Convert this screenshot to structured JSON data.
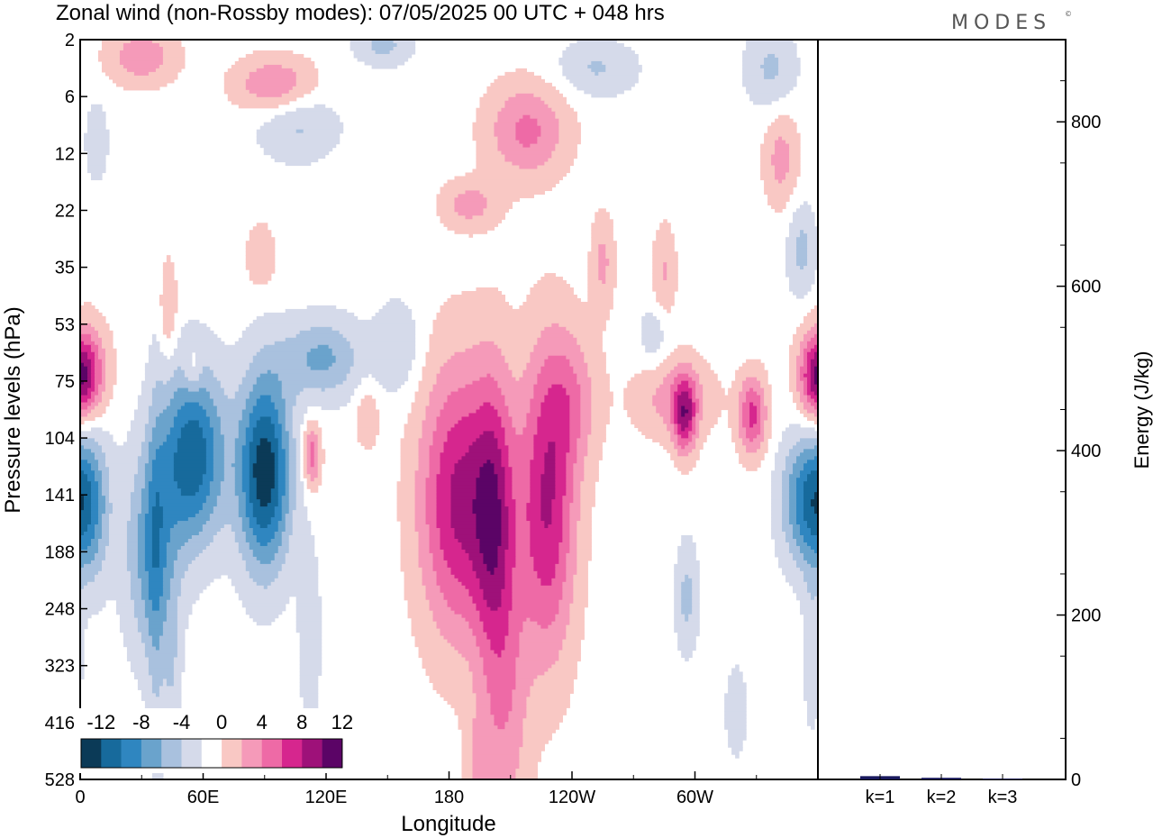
{
  "title": "Zonal wind (non-Rossby modes):  07/05/2025  00 UTC  + 048 hrs",
  "brand": "MODES",
  "brand_mark": "©",
  "colors": {
    "scale": [
      "#0b3a57",
      "#176a9c",
      "#2f86c0",
      "#6aa3cc",
      "#a9c1de",
      "#d5daea",
      "#ffffff",
      "#f9c8c4",
      "#f59ab9",
      "#ee6aa6",
      "#d6268e",
      "#9e1179",
      "#5b0466"
    ],
    "frame": "#000000",
    "energy_bar": "#1a1a5e"
  },
  "chart_data": [
    {
      "type": "heatmap",
      "title": "Zonal wind (non-Rossby modes):  07/05/2025  00 UTC  + 048 hrs",
      "xlabel": "Longitude",
      "ylabel": "Pressure levels (hPa)",
      "x_ticks": [
        "0",
        "60E",
        "120E",
        "180",
        "120W",
        "60W"
      ],
      "x_tick_degrees": [
        0,
        60,
        120,
        180,
        240,
        300
      ],
      "xlim": [
        0,
        360
      ],
      "y_ticks": [
        "2",
        "6",
        "12",
        "22",
        "35",
        "53",
        "75",
        "104",
        "141",
        "188",
        "248",
        "323",
        "416",
        "528"
      ],
      "y_scale": "model levels (categorical, top to bottom)",
      "colorbar_labels": [
        "-12",
        "-8",
        "-4",
        "0",
        "4",
        "8",
        "12"
      ],
      "grid": false,
      "features": [
        {
          "sign": "negative",
          "lon": 55,
          "level": 7.3,
          "lon_spread": 11,
          "level_spread": 1.1,
          "amp": -10.5
        },
        {
          "sign": "negative",
          "lon": 90,
          "level": 7.6,
          "lon_spread": 9,
          "level_spread": 1.2,
          "amp": -12.5
        },
        {
          "sign": "negative",
          "lon": 35,
          "level": 9.0,
          "lon_spread": 9,
          "level_spread": 1.3,
          "amp": -6.5
        },
        {
          "sign": "negative",
          "lon": 118,
          "level": 5.6,
          "lon_spread": 14,
          "level_spread": 0.5,
          "amp": -5.5
        },
        {
          "sign": "negative",
          "lon": 5,
          "level": 8.2,
          "lon_spread": 7,
          "level_spread": 1.0,
          "amp": -5.0
        },
        {
          "sign": "negative",
          "lon": 355,
          "level": 8.1,
          "lon_spread": 9,
          "level_spread": 0.8,
          "amp": -8.5
        },
        {
          "sign": "negative",
          "lon": 296,
          "level": 9.8,
          "lon_spread": 4,
          "level_spread": 0.7,
          "amp": -3.6
        },
        {
          "sign": "negative",
          "lon": 106,
          "level": 1.5,
          "lon_spread": 14,
          "level_spread": 0.45,
          "amp": -3.4
        },
        {
          "sign": "negative",
          "lon": 252,
          "level": 0.5,
          "lon_spread": 14,
          "level_spread": 0.35,
          "amp": -3.2
        },
        {
          "sign": "negative",
          "lon": 337,
          "level": 0.5,
          "lon_spread": 9,
          "level_spread": 0.5,
          "amp": -3.4
        },
        {
          "sign": "negative",
          "lon": 148,
          "level": 0.1,
          "lon_spread": 10,
          "level_spread": 0.25,
          "amp": -3.6
        },
        {
          "sign": "negative",
          "lon": 352,
          "level": 3.7,
          "lon_spread": 5,
          "level_spread": 0.6,
          "amp": -3.6
        },
        {
          "sign": "negative",
          "lon": 280,
          "level": 5.2,
          "lon_spread": 5,
          "level_spread": 0.4,
          "amp": -2.6
        },
        {
          "sign": "negative",
          "lon": 8,
          "level": 1.8,
          "lon_spread": 4,
          "level_spread": 0.5,
          "amp": -2.6
        },
        {
          "sign": "negative",
          "lon": 37,
          "level": 9.8,
          "lon_spread": 3,
          "level_spread": 3.0,
          "amp": -2.4
        },
        {
          "sign": "negative",
          "lon": 45,
          "level": 11.2,
          "lon_spread": 3,
          "level_spread": 1.0,
          "amp": -2.3
        },
        {
          "sign": "negative",
          "lon": 112,
          "level": 10.5,
          "lon_spread": 4,
          "level_spread": 1.2,
          "amp": -2.4
        },
        {
          "sign": "negative",
          "lon": 155,
          "level": 5.4,
          "lon_spread": 8,
          "level_spread": 0.6,
          "amp": -3.0
        },
        {
          "sign": "negative",
          "lon": 320,
          "level": 11.8,
          "lon_spread": 4,
          "level_spread": 0.6,
          "amp": -2.4
        },
        {
          "sign": "negative",
          "lon": 357,
          "level": 10.8,
          "lon_spread": 3,
          "level_spread": 1.0,
          "amp": -2.4
        },
        {
          "sign": "positive",
          "lon": 185,
          "level": 8.1,
          "lon_spread": 14,
          "level_spread": 1.7,
          "amp": 9.5
        },
        {
          "sign": "positive",
          "lon": 228,
          "level": 8.2,
          "lon_spread": 10,
          "level_spread": 1.9,
          "amp": 9.0
        },
        {
          "sign": "positive",
          "lon": 202,
          "level": 8.4,
          "lon_spread": 7,
          "level_spread": 1.8,
          "amp": 7.0
        },
        {
          "sign": "positive",
          "lon": 208,
          "level": 11.8,
          "lon_spread": 8,
          "level_spread": 1.8,
          "amp": 4.0
        },
        {
          "sign": "positive",
          "lon": 195,
          "level": 13.0,
          "lon_spread": 5,
          "level_spread": 0.9,
          "amp": 3.2
        },
        {
          "sign": "positive",
          "lon": 240,
          "level": 6.3,
          "lon_spread": 10,
          "level_spread": 0.9,
          "amp": 3.8
        },
        {
          "sign": "positive",
          "lon": 290,
          "level": 6.3,
          "lon_spread": 14,
          "level_spread": 0.5,
          "amp": 4.0
        },
        {
          "sign": "positive",
          "lon": 295,
          "level": 6.6,
          "lon_spread": 4,
          "level_spread": 0.5,
          "amp": 8.0
        },
        {
          "sign": "positive",
          "lon": 328,
          "level": 6.6,
          "lon_spread": 5,
          "level_spread": 0.5,
          "amp": 7.5
        },
        {
          "sign": "positive",
          "lon": 360,
          "level": 6.0,
          "lon_spread": 6,
          "level_spread": 0.5,
          "amp": 6.0
        },
        {
          "sign": "positive",
          "lon": 2,
          "level": 5.8,
          "lon_spread": 8,
          "level_spread": 0.6,
          "amp": 6.5
        },
        {
          "sign": "positive",
          "lon": 95,
          "level": 0.8,
          "lon_spread": 14,
          "level_spread": 0.35,
          "amp": 5.2
        },
        {
          "sign": "positive",
          "lon": 30,
          "level": 0.3,
          "lon_spread": 12,
          "level_spread": 0.35,
          "amp": 4.5
        },
        {
          "sign": "positive",
          "lon": 218,
          "level": 1.6,
          "lon_spread": 14,
          "level_spread": 0.6,
          "amp": 5.5
        },
        {
          "sign": "positive",
          "lon": 342,
          "level": 2.1,
          "lon_spread": 6,
          "level_spread": 0.6,
          "amp": 3.8
        },
        {
          "sign": "positive",
          "lon": 190,
          "level": 2.9,
          "lon_spread": 10,
          "level_spread": 0.3,
          "amp": 3.8
        },
        {
          "sign": "positive",
          "lon": 255,
          "level": 3.9,
          "lon_spread": 4,
          "level_spread": 0.6,
          "amp": 3.5
        },
        {
          "sign": "positive",
          "lon": 285,
          "level": 4.1,
          "lon_spread": 4,
          "level_spread": 0.6,
          "amp": 3.2
        },
        {
          "sign": "positive",
          "lon": 88,
          "level": 3.8,
          "lon_spread": 5,
          "level_spread": 0.4,
          "amp": 3.0
        },
        {
          "sign": "positive",
          "lon": 43,
          "level": 4.7,
          "lon_spread": 3,
          "level_spread": 0.6,
          "amp": 3.2
        },
        {
          "sign": "positive",
          "lon": 113,
          "level": 7.3,
          "lon_spread": 3,
          "level_spread": 0.4,
          "amp": 6.5
        },
        {
          "sign": "positive",
          "lon": 140,
          "level": 6.6,
          "lon_spread": 4,
          "level_spread": 0.4,
          "amp": 3.0
        },
        {
          "sign": "positive",
          "lon": 55,
          "level": 5.8,
          "lon_spread": 3,
          "level_spread": 0.3,
          "amp": 3.0
        }
      ]
    },
    {
      "type": "bar",
      "categories": [
        "k=1",
        "k=2",
        "k=3"
      ],
      "values": [
        4,
        2,
        1
      ],
      "ylabel": "Energy (J/kg)",
      "y_ticks": [
        "0",
        "200",
        "400",
        "600",
        "800"
      ],
      "ylim": [
        0,
        900
      ]
    }
  ]
}
